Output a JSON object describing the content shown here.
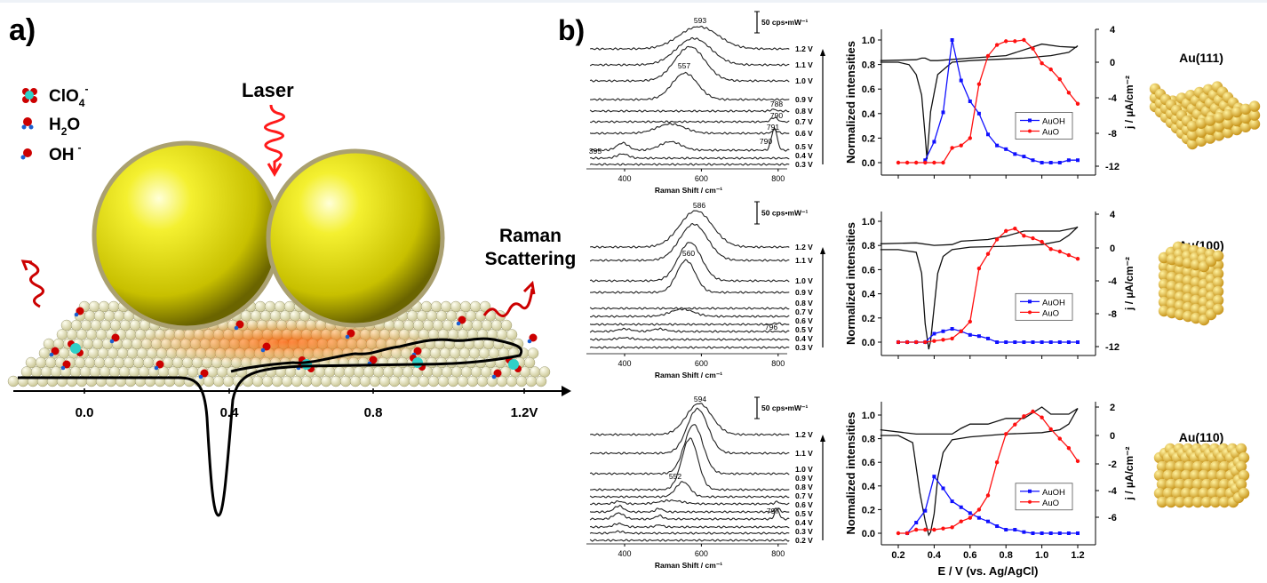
{
  "panel_a": {
    "label": "a)",
    "legend": [
      {
        "species": "ClO",
        "sub": "4",
        "sup": "-"
      },
      {
        "species": "H",
        "sub": "2",
        "tail": "O"
      },
      {
        "species": "OH",
        "sup": "-"
      }
    ],
    "laser_label": "Laser",
    "raman_label_line1": "Raman",
    "raman_label_line2": "Scattering",
    "axis_ticks": [
      "0.0",
      "0.4",
      "0.8",
      "1.2V"
    ]
  },
  "panel_b": {
    "label": "b)"
  },
  "colors": {
    "auoh": "#1010ff",
    "auo": "#ff1010",
    "gold": "#e8c048",
    "laser": "#ff1a1a"
  },
  "crystals": [
    "Au(111)",
    "Au(100)",
    "Au(110)"
  ],
  "chart_data": [
    {
      "type": "line",
      "name": "raman-au111",
      "xlabel": "Raman Shift / cm⁻¹",
      "xticks": [
        "400",
        "600",
        "800"
      ],
      "xlim": [
        300,
        830
      ],
      "scale_bar": "50 cps•mW⁻¹",
      "annotations": [
        "593",
        "557",
        "788",
        "790",
        "791",
        "790",
        "395"
      ],
      "series": [
        {
          "name": "1.2 V",
          "peaks": [
            [
              593,
              52,
              85
            ]
          ]
        },
        {
          "name": "1.1 V",
          "peaks": [
            [
              580,
              62,
              75
            ]
          ]
        },
        {
          "name": "1.0 V",
          "peaks": [
            [
              570,
              80,
              65
            ]
          ]
        },
        {
          "name": "0.9 V",
          "peaks": [
            [
              557,
              62,
              55
            ]
          ]
        },
        {
          "name": "0.8 V",
          "peaks": [
            [
              788,
              4,
              12
            ]
          ]
        },
        {
          "name": "0.7 V",
          "peaks": [
            [
              790,
              10,
              14
            ]
          ]
        },
        {
          "name": "0.6 V",
          "peaks": [
            [
              520,
              22,
              60
            ],
            [
              791,
              8,
              12
            ]
          ]
        },
        {
          "name": "0.5 V",
          "peaks": [
            [
              395,
              17,
              25
            ],
            [
              520,
              20,
              45
            ],
            [
              790,
              52,
              12
            ]
          ]
        },
        {
          "name": "0.4 V",
          "peaks": [
            [
              395,
              10,
              25
            ]
          ]
        },
        {
          "name": "0.3 V",
          "peaks": []
        }
      ]
    },
    {
      "type": "line",
      "name": "raman-au100",
      "xlabel": "Raman Shift / cm⁻¹",
      "xticks": [
        "400",
        "600",
        "800"
      ],
      "xlim": [
        300,
        830
      ],
      "scale_bar": "50 cps•mW⁻¹",
      "annotations": [
        "586",
        "560",
        "796"
      ],
      "series": [
        {
          "name": "1.2 V",
          "peaks": [
            [
              586,
              85,
              70
            ]
          ]
        },
        {
          "name": "1.1 V",
          "peaks": [
            [
              580,
              85,
              60
            ]
          ]
        },
        {
          "name": "1.0 V",
          "peaks": [
            [
              570,
              90,
              50
            ]
          ]
        },
        {
          "name": "0.9 V",
          "peaks": [
            [
              560,
              75,
              40
            ]
          ]
        },
        {
          "name": "0.8 V",
          "peaks": []
        },
        {
          "name": "0.7 V",
          "peaks": [
            [
              550,
              17,
              50
            ]
          ]
        },
        {
          "name": "0.6 V",
          "peaks": [
            [
              796,
              3,
              12
            ]
          ]
        },
        {
          "name": "0.5 V",
          "peaks": [
            [
              400,
              6,
              30
            ],
            [
              490,
              6,
              30
            ]
          ]
        },
        {
          "name": "0.4 V",
          "peaks": [
            [
              400,
              4,
              30
            ]
          ]
        },
        {
          "name": "0.3 V",
          "peaks": []
        }
      ]
    },
    {
      "type": "line",
      "name": "raman-au110",
      "xlabel": "Raman Shift / cm⁻¹",
      "xticks": [
        "400",
        "600",
        "800"
      ],
      "xlim": [
        300,
        830
      ],
      "scale_bar": "50 cps•mW⁻¹",
      "annotations": [
        "594",
        "552",
        "797"
      ],
      "series": [
        {
          "name": "1.2 V",
          "peaks": [
            [
              594,
              73,
              55
            ]
          ]
        },
        {
          "name": "1.1 V",
          "peaks": [
            [
              590,
              104,
              45
            ]
          ]
        },
        {
          "name": "1.0 V",
          "peaks": [
            [
              580,
              115,
              40
            ]
          ]
        },
        {
          "name": "0.9 V",
          "peaks": [
            [
              570,
              120,
              35
            ]
          ]
        },
        {
          "name": "0.8 V",
          "peaks": [
            [
              552,
              35,
              30
            ]
          ]
        },
        {
          "name": "0.7 V",
          "peaks": [
            [
              385,
              6,
              20
            ],
            [
              520,
              8,
              50
            ],
            [
              797,
              5,
              10
            ]
          ]
        },
        {
          "name": "0.6 V",
          "peaks": [
            [
              385,
              14,
              20
            ],
            [
              490,
              8,
              15
            ],
            [
              797,
              10,
              10
            ]
          ]
        },
        {
          "name": "0.5 V",
          "peaks": [
            [
              385,
              14,
              22
            ],
            [
              490,
              8,
              15
            ],
            [
              797,
              22,
              10
            ]
          ]
        },
        {
          "name": "0.4 V",
          "peaks": [
            [
              385,
              8,
              22
            ],
            [
              490,
              5,
              15
            ]
          ]
        },
        {
          "name": "0.3 V",
          "peaks": [
            [
              385,
              4,
              22
            ]
          ]
        },
        {
          "name": "0.2 V",
          "peaks": []
        }
      ]
    },
    {
      "type": "line",
      "name": "intensity-cv-au111",
      "ylabel": "Normalized intensities",
      "ylabel_right": "j / µA/cm⁻²",
      "yticks": [
        "0.0",
        "0.2",
        "0.4",
        "0.6",
        "0.8",
        "1.0"
      ],
      "yticks_right": [
        "4",
        "0",
        "-4",
        "-8",
        "-12"
      ],
      "ylim_right": [
        -12,
        4
      ],
      "xlim": [
        0.1,
        1.25
      ],
      "ylim": [
        -0.05,
        1.1
      ],
      "legend": [
        "AuOH",
        "AuO"
      ],
      "series": [
        {
          "name": "AuOH",
          "x": [
            0.35,
            0.4,
            0.45,
            0.5,
            0.55,
            0.6,
            0.65,
            0.7,
            0.75,
            0.8,
            0.85,
            0.9,
            0.95,
            1.0,
            1.05,
            1.1,
            1.15,
            1.2
          ],
          "y": [
            0.02,
            0.17,
            0.41,
            1.0,
            0.67,
            0.5,
            0.4,
            0.23,
            0.14,
            0.11,
            0.07,
            0.05,
            0.02,
            0.0,
            0.0,
            0.0,
            0.02,
            0.02
          ]
        },
        {
          "name": "AuO",
          "x": [
            0.2,
            0.25,
            0.3,
            0.35,
            0.4,
            0.45,
            0.5,
            0.55,
            0.6,
            0.65,
            0.7,
            0.75,
            0.8,
            0.85,
            0.9,
            0.95,
            1.0,
            1.05,
            1.1,
            1.15,
            1.2
          ],
          "y": [
            0,
            0,
            0,
            0,
            0,
            0,
            0.12,
            0.14,
            0.2,
            0.64,
            0.87,
            0.96,
            0.99,
            0.99,
            1.0,
            0.93,
            0.81,
            0.76,
            0.68,
            0.57,
            0.48
          ]
        },
        {
          "name": "CV",
          "x": [
            0.1,
            0.3,
            0.33,
            0.35,
            0.38,
            0.42,
            0.48,
            0.6,
            0.8,
            1.0,
            1.1,
            1.19,
            1.2,
            1.15,
            1.05,
            1.0,
            0.95,
            0.9,
            0.8,
            0.7,
            0.6,
            0.5,
            0.42,
            0.38,
            0.36,
            0.35,
            0.33,
            0.3,
            0.26,
            0.2,
            0.1
          ],
          "j": [
            0.2,
            0.3,
            0.5,
            0.5,
            0.2,
            0.2,
            0.3,
            0.5,
            0.8,
            2.2,
            1.9,
            1.8,
            2.0,
            1.2,
            0.8,
            0.7,
            0.6,
            0.5,
            0.4,
            0.3,
            0.2,
            0.0,
            -1.5,
            -6,
            -11.8,
            -9,
            -4,
            -1.5,
            -0.3,
            0.0,
            0.0
          ]
        }
      ]
    },
    {
      "type": "line",
      "name": "intensity-cv-au100",
      "ylabel": "Normalized intensities",
      "ylabel_right": "j / µA/cm⁻²",
      "yticks": [
        "0.0",
        "0.2",
        "0.4",
        "0.6",
        "0.8",
        "1.0"
      ],
      "yticks_right": [
        "4",
        "0",
        "-4",
        "-8",
        "-12"
      ],
      "ylim_right": [
        -12,
        4
      ],
      "xlim": [
        0.1,
        1.25
      ],
      "ylim": [
        -0.05,
        1.1
      ],
      "legend": [
        "AuOH",
        "AuO"
      ],
      "series": [
        {
          "name": "AuOH",
          "x": [
            0.2,
            0.25,
            0.3,
            0.35,
            0.4,
            0.45,
            0.5,
            0.55,
            0.6,
            0.65,
            0.7,
            0.75,
            0.8,
            0.85,
            0.9,
            0.95,
            1.0,
            1.05,
            1.1,
            1.15,
            1.2
          ],
          "y": [
            0,
            0,
            0,
            0,
            0.07,
            0.09,
            0.11,
            0.09,
            0.06,
            0.05,
            0.03,
            0,
            0,
            0,
            0,
            0,
            0,
            0,
            0,
            0,
            0
          ]
        },
        {
          "name": "AuO",
          "x": [
            0.2,
            0.25,
            0.3,
            0.35,
            0.4,
            0.45,
            0.5,
            0.55,
            0.6,
            0.65,
            0.7,
            0.75,
            0.8,
            0.85,
            0.9,
            0.95,
            1.0,
            1.05,
            1.1,
            1.15,
            1.2
          ],
          "y": [
            0,
            0,
            0,
            0,
            0.01,
            0.02,
            0.03,
            0.09,
            0.17,
            0.61,
            0.73,
            0.85,
            0.92,
            0.94,
            0.88,
            0.86,
            0.83,
            0.77,
            0.75,
            0.72,
            0.69
          ]
        },
        {
          "name": "CV",
          "x": [
            0.1,
            0.3,
            0.4,
            0.5,
            0.55,
            0.7,
            0.8,
            0.9,
            1.0,
            1.1,
            1.19,
            1.2,
            1.15,
            1.1,
            1.0,
            0.8,
            0.6,
            0.5,
            0.45,
            0.42,
            0.4,
            0.38,
            0.37,
            0.35,
            0.33,
            0.3,
            0.2,
            0.1
          ],
          "j": [
            0.5,
            0.6,
            0.3,
            0.4,
            0.8,
            1.0,
            1.4,
            2.0,
            2.0,
            2.0,
            2.4,
            2.5,
            1.5,
            0.8,
            0.4,
            0.2,
            0.1,
            -0.2,
            -1,
            -3,
            -7,
            -11,
            -12,
            -9,
            -3,
            -0.5,
            -0.2,
            -0.2
          ]
        }
      ]
    },
    {
      "type": "line",
      "name": "intensity-cv-au110",
      "ylabel": "Normalized intensities",
      "ylabel_right": "j / µA/cm⁻²",
      "xlabel": "E / V (vs. Ag/AgCl)",
      "xticks": [
        "0.2",
        "0.4",
        "0.6",
        "0.8",
        "1.0",
        "1.2"
      ],
      "yticks": [
        "0.0",
        "0.2",
        "0.4",
        "0.6",
        "0.8",
        "1.0"
      ],
      "yticks_right": [
        "2",
        "0",
        "-2",
        "-4",
        "-6"
      ],
      "ylim_right": [
        -7,
        2.5
      ],
      "xlim": [
        0.1,
        1.25
      ],
      "ylim": [
        -0.1,
        1.1
      ],
      "legend": [
        "AuOH",
        "AuO"
      ],
      "series": [
        {
          "name": "AuOH",
          "x": [
            0.25,
            0.3,
            0.35,
            0.4,
            0.45,
            0.5,
            0.55,
            0.6,
            0.65,
            0.7,
            0.75,
            0.8,
            0.85,
            0.9,
            0.95,
            1.0,
            1.05,
            1.1,
            1.15,
            1.2
          ],
          "y": [
            0,
            0.09,
            0.19,
            0.48,
            0.38,
            0.27,
            0.22,
            0.17,
            0.13,
            0.1,
            0.06,
            0.03,
            0.03,
            0.01,
            0,
            0,
            0,
            0,
            0,
            0
          ]
        },
        {
          "name": "AuO",
          "x": [
            0.2,
            0.25,
            0.3,
            0.35,
            0.4,
            0.45,
            0.5,
            0.55,
            0.6,
            0.65,
            0.7,
            0.75,
            0.8,
            0.85,
            0.9,
            0.95,
            1.0,
            1.05,
            1.1,
            1.15,
            1.2
          ],
          "y": [
            0,
            0,
            0.03,
            0.03,
            0.03,
            0.04,
            0.05,
            0.1,
            0.13,
            0.2,
            0.32,
            0.6,
            0.84,
            0.92,
            0.99,
            1.03,
            0.98,
            0.88,
            0.8,
            0.72,
            0.61
          ]
        },
        {
          "name": "CV",
          "x": [
            0.1,
            0.3,
            0.5,
            0.55,
            0.6,
            0.7,
            0.8,
            0.9,
            1.0,
            1.05,
            1.15,
            1.2,
            1.15,
            1.1,
            1.0,
            0.8,
            0.6,
            0.5,
            0.45,
            0.42,
            0.4,
            0.38,
            0.37,
            0.35,
            0.32,
            0.28,
            0.2,
            0.1
          ],
          "j": [
            0.4,
            0.1,
            0.1,
            0.5,
            0.8,
            0.8,
            1.2,
            1.2,
            2.0,
            1.5,
            1.5,
            1.9,
            0.8,
            0.4,
            0.2,
            0.1,
            -0.1,
            -0.3,
            -1.2,
            -3,
            -5.5,
            -6.8,
            -7,
            -6,
            -4,
            -0.5,
            0.0,
            0.0
          ]
        }
      ]
    }
  ]
}
